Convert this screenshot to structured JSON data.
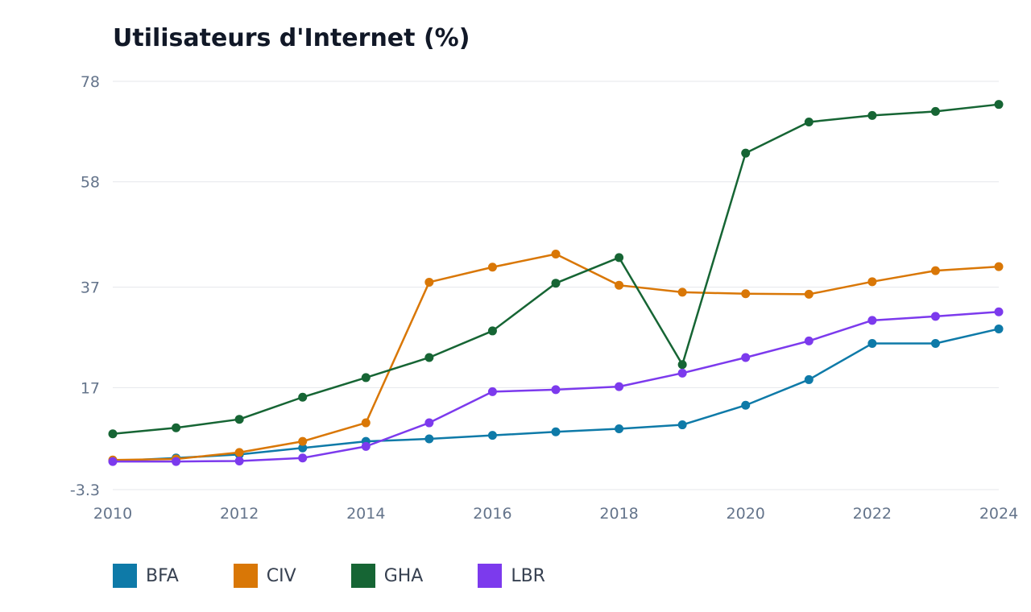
{
  "chart_data": {
    "type": "line",
    "title": "Utilisateurs d'Internet (%)",
    "xlabel": "",
    "ylabel": "",
    "x": [
      2010,
      2011,
      2012,
      2013,
      2014,
      2015,
      2016,
      2017,
      2018,
      2019,
      2020,
      2021,
      2022,
      2023,
      2024
    ],
    "x_ticks": [
      "2010",
      "2012",
      "2014",
      "2016",
      "2018",
      "2020",
      "2022",
      "2024"
    ],
    "y_ticks": [
      "78",
      "58",
      "37",
      "17",
      "-3.3"
    ],
    "ylim": [
      -3.3,
      78
    ],
    "xlim": [
      2010,
      2024
    ],
    "grid": true,
    "legend_position": "bottom-left",
    "series": [
      {
        "name": "BFA",
        "color": "#0e7aa8",
        "values": [
          2.4,
          3.0,
          3.7,
          5.0,
          6.3,
          6.8,
          7.5,
          8.2,
          8.8,
          9.6,
          13.5,
          18.6,
          25.8,
          25.8,
          28.7
        ]
      },
      {
        "name": "CIV",
        "color": "#d97706",
        "values": [
          2.6,
          2.8,
          4.1,
          6.3,
          10.0,
          38.0,
          41.0,
          43.6,
          37.4,
          36.0,
          35.7,
          35.6,
          38.1,
          40.3,
          41.1
        ]
      },
      {
        "name": "GHA",
        "color": "#166534",
        "values": [
          7.8,
          9.0,
          10.7,
          15.1,
          19.0,
          23.0,
          28.3,
          37.8,
          42.9,
          21.6,
          63.7,
          69.9,
          71.2,
          72.0,
          73.4
        ]
      },
      {
        "name": "LBR",
        "color": "#7c3aed",
        "values": [
          2.3,
          2.3,
          2.4,
          3.0,
          5.3,
          10.0,
          16.2,
          16.6,
          17.2,
          19.9,
          23.0,
          26.3,
          30.4,
          31.2,
          32.1
        ]
      }
    ]
  }
}
